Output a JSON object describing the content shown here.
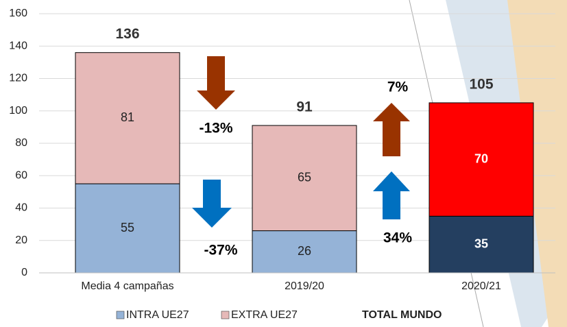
{
  "chart_data": {
    "type": "stacked_bar",
    "categories": [
      "Media 4 campañas",
      "2019/20",
      "2020/21"
    ],
    "series": [
      {
        "name": "INTRA UE27",
        "color": "#95b3d7",
        "values": [
          55,
          26,
          35
        ],
        "colors": [
          "#95b3d7",
          "#95b3d7",
          "#243f60"
        ],
        "label_colors": [
          "#222222",
          "#222222",
          "#ffffff"
        ]
      },
      {
        "name": "EXTRA UE27",
        "color": "#e6b9b8",
        "values": [
          81,
          65,
          70
        ],
        "colors": [
          "#e6b9b8",
          "#e6b9b8",
          "#ff0000"
        ],
        "label_colors": [
          "#222222",
          "#222222",
          "#ffffff"
        ]
      }
    ],
    "totals": {
      "name": "TOTAL MUNDO",
      "values": [
        136,
        91,
        105
      ]
    },
    "annotations": [
      "-13%",
      "-37%",
      "7%",
      "34%"
    ],
    "ylim": [
      0,
      160
    ],
    "yticks": [
      0,
      20,
      40,
      60,
      80,
      100,
      120,
      140,
      160
    ],
    "grid": true
  }
}
